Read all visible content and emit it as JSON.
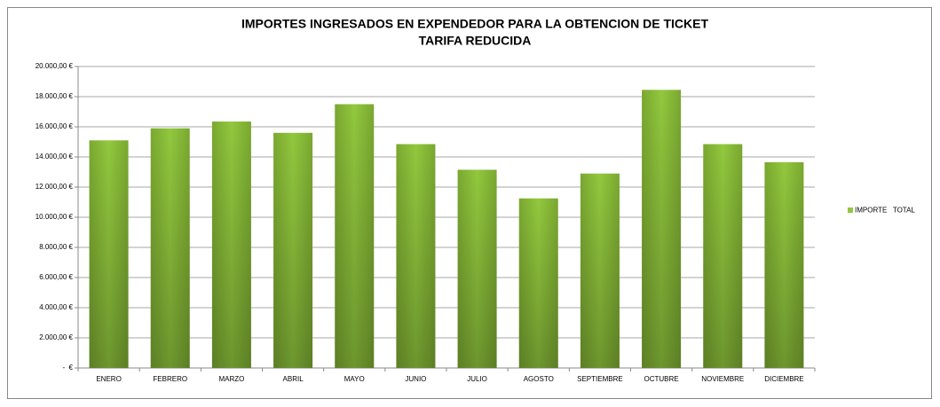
{
  "chart_data": {
    "type": "bar",
    "title": "IMPORTES INGRESADOS EN EXPENDEDOR PARA LA OBTENCION DE TICKET",
    "subtitle": "TARIFA REDUCIDA",
    "categories": [
      "ENERO",
      "FEBRERO",
      "MARZO",
      "ABRIL",
      "MAYO",
      "JUNIO",
      "JULIO",
      "AGOSTO",
      "SEPTIEMBRE",
      "OCTUBRE",
      "NOVIEMBRE",
      "DICIEMBRE"
    ],
    "series": [
      {
        "name": "IMPORTE   TOTAL",
        "color": "#92c83e",
        "values": [
          15100,
          15900,
          16350,
          15600,
          17500,
          14850,
          13150,
          11250,
          12900,
          18450,
          14850,
          13650
        ]
      }
    ],
    "ylim": [
      0,
      20000
    ],
    "yticks": [
      {
        "value": 0,
        "label": "-  €"
      },
      {
        "value": 2000,
        "label": "2.000,00 €"
      },
      {
        "value": 4000,
        "label": "4.000,00 €"
      },
      {
        "value": 6000,
        "label": "6.000,00 €"
      },
      {
        "value": 8000,
        "label": "8.000,00 €"
      },
      {
        "value": 10000,
        "label": "10.000,00 €"
      },
      {
        "value": 12000,
        "label": "12.000,00 €"
      },
      {
        "value": 14000,
        "label": "14.000,00 €"
      },
      {
        "value": 16000,
        "label": "16.000,00 €"
      },
      {
        "value": 18000,
        "label": "18.000,00 €"
      },
      {
        "value": 20000,
        "label": "20.000,00 €"
      }
    ],
    "grid": true,
    "legend": "right"
  }
}
